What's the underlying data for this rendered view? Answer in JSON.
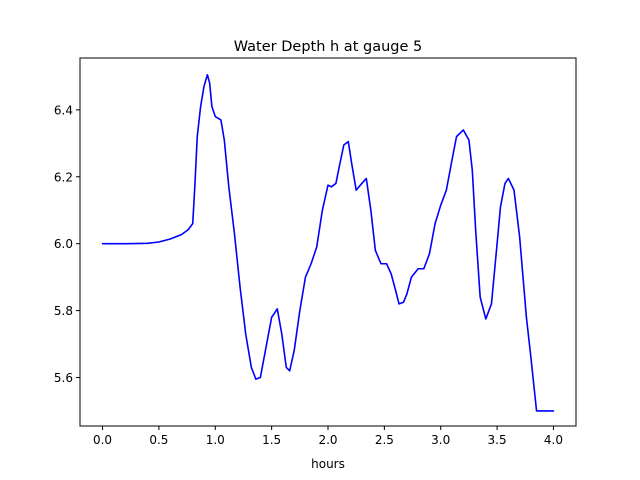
{
  "chart_data": {
    "type": "line",
    "title": "Water Depth h at gauge 5",
    "xlabel": "hours",
    "ylabel": "",
    "xlim": [
      -0.2,
      4.2
    ],
    "ylim": [
      5.455,
      6.555
    ],
    "grid": false,
    "x_ticks": [
      0.0,
      0.5,
      1.0,
      1.5,
      2.0,
      2.5,
      3.0,
      3.5,
      4.0
    ],
    "x_tick_labels": [
      "0.0",
      "0.5",
      "1.0",
      "1.5",
      "2.0",
      "2.5",
      "3.0",
      "3.5",
      "4.0"
    ],
    "y_ticks": [
      5.6,
      5.8,
      6.0,
      6.2,
      6.4
    ],
    "y_tick_labels": [
      "5.6",
      "5.8",
      "6.0",
      "6.2",
      "6.4"
    ],
    "series": [
      {
        "color": "#0000ff",
        "x": [
          0.0,
          0.2,
          0.4,
          0.5,
          0.6,
          0.7,
          0.76,
          0.8,
          0.82,
          0.84,
          0.87,
          0.9,
          0.93,
          0.95,
          0.97,
          1.0,
          1.05,
          1.08,
          1.12,
          1.17,
          1.22,
          1.27,
          1.32,
          1.36,
          1.4,
          1.45,
          1.5,
          1.55,
          1.59,
          1.63,
          1.66,
          1.7,
          1.75,
          1.8,
          1.85,
          1.9,
          1.95,
          2.0,
          2.03,
          2.07,
          2.1,
          2.14,
          2.18,
          2.21,
          2.25,
          2.3,
          2.34,
          2.38,
          2.42,
          2.47,
          2.52,
          2.56,
          2.6,
          2.63,
          2.67,
          2.7,
          2.74,
          2.8,
          2.85,
          2.9,
          2.95,
          3.0,
          3.05,
          3.1,
          3.14,
          3.2,
          3.25,
          3.28,
          3.31,
          3.35,
          3.4,
          3.45,
          3.5,
          3.53,
          3.57,
          3.6,
          3.65,
          3.7,
          3.73,
          3.76,
          3.8,
          3.85,
          3.9,
          3.95,
          4.0
        ],
        "y": [
          6.0,
          6.0,
          6.001,
          6.005,
          6.014,
          6.027,
          6.042,
          6.06,
          6.18,
          6.32,
          6.41,
          6.47,
          6.505,
          6.48,
          6.41,
          6.38,
          6.37,
          6.31,
          6.17,
          6.03,
          5.87,
          5.73,
          5.63,
          5.595,
          5.6,
          5.69,
          5.78,
          5.805,
          5.73,
          5.63,
          5.62,
          5.68,
          5.8,
          5.9,
          5.94,
          5.99,
          6.1,
          6.175,
          6.17,
          6.18,
          6.23,
          6.295,
          6.305,
          6.24,
          6.16,
          6.18,
          6.195,
          6.1,
          5.98,
          5.94,
          5.94,
          5.91,
          5.86,
          5.82,
          5.825,
          5.85,
          5.9,
          5.925,
          5.925,
          5.97,
          6.06,
          6.115,
          6.16,
          6.25,
          6.32,
          6.34,
          6.31,
          6.22,
          6.04,
          5.84,
          5.775,
          5.82,
          6.0,
          6.11,
          6.18,
          6.195,
          6.16,
          6.02,
          5.9,
          5.78,
          5.66,
          5.5,
          5.5,
          5.5,
          5.5
        ]
      }
    ]
  }
}
